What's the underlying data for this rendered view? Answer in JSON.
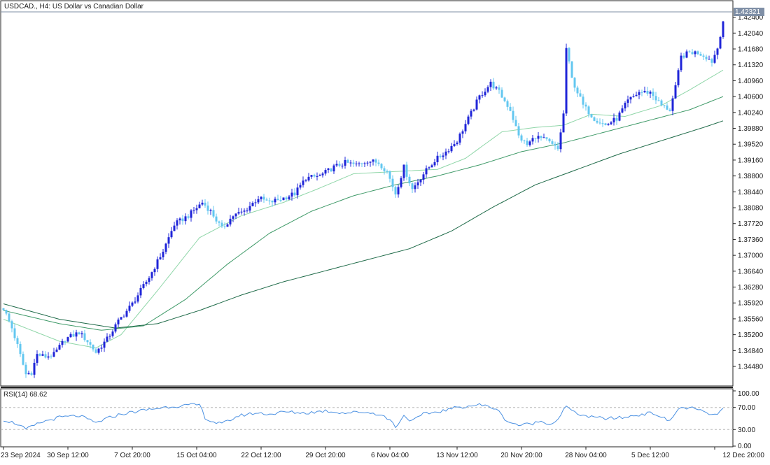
{
  "header": {
    "symbol_label": "USDCAD., H4:  US Dollar vs Canadian Dollar",
    "current_price": "1.42321"
  },
  "rsi_panel": {
    "label": "RSI(14) 68.62"
  },
  "colors": {
    "background": "#ffffff",
    "frame": "#222222",
    "bull_candle": "#1f25d8",
    "bear_candle": "#63c7f0",
    "ma_fast": "#8fd6a8",
    "ma_mid": "#3f9a68",
    "ma_slow": "#1e6a48",
    "rsi_line": "#4a90e2",
    "rsi_level": "#b8b8b8",
    "price_label_bg": "#7f8fa6"
  },
  "chart_data": [
    {
      "type": "candlestick",
      "title": "USDCAD., H4:  US Dollar vs Canadian Dollar",
      "price_ticks": [
        "1.42400",
        "1.42040",
        "1.41680",
        "1.41320",
        "1.40960",
        "1.40600",
        "1.40240",
        "1.39880",
        "1.39520",
        "1.39160",
        "1.38800",
        "1.38440",
        "1.38080",
        "1.37720",
        "1.37360",
        "1.37000",
        "1.36640",
        "1.36280",
        "1.35920",
        "1.35560",
        "1.35200",
        "1.34840",
        "1.34480"
      ],
      "ylim": [
        1.341,
        1.426
      ],
      "time_ticks": [
        "23 Sep 2024",
        "30 Sep 12:00",
        "7 Oct 20:00",
        "15 Oct 04:00",
        "22 Oct 12:00",
        "29 Oct 20:00",
        "6 Nov 04:00",
        "13 Nov 12:00",
        "20 Nov 20:00",
        "28 Nov 04:00",
        "5 Dec 12:00",
        "12 Dec 20:00"
      ],
      "price_keypoints": [
        [
          0,
          1.358
        ],
        [
          3,
          1.3535
        ],
        [
          5,
          1.3495
        ],
        [
          8,
          1.343
        ],
        [
          10,
          1.3435
        ],
        [
          12,
          1.3475
        ],
        [
          15,
          1.347
        ],
        [
          18,
          1.3475
        ],
        [
          22,
          1.351
        ],
        [
          27,
          1.3525
        ],
        [
          30,
          1.3505
        ],
        [
          33,
          1.348
        ],
        [
          37,
          1.351
        ],
        [
          41,
          1.355
        ],
        [
          46,
          1.359
        ],
        [
          52,
          1.365
        ],
        [
          57,
          1.371
        ],
        [
          61,
          1.377
        ],
        [
          66,
          1.379
        ],
        [
          71,
          1.382
        ],
        [
          74,
          1.38
        ],
        [
          78,
          1.376
        ],
        [
          82,
          1.379
        ],
        [
          86,
          1.38
        ],
        [
          91,
          1.383
        ],
        [
          95,
          1.382
        ],
        [
          100,
          1.383
        ],
        [
          104,
          1.384
        ],
        [
          108,
          1.3875
        ],
        [
          113,
          1.388
        ],
        [
          118,
          1.39
        ],
        [
          122,
          1.391
        ],
        [
          126,
          1.3905
        ],
        [
          130,
          1.3915
        ],
        [
          134,
          1.391
        ],
        [
          137,
          1.389
        ],
        [
          140,
          1.384
        ],
        [
          143,
          1.39
        ],
        [
          146,
          1.385
        ],
        [
          150,
          1.3885
        ],
        [
          154,
          1.3915
        ],
        [
          158,
          1.3935
        ],
        [
          162,
          1.396
        ],
        [
          166,
          1.401
        ],
        [
          170,
          1.406
        ],
        [
          174,
          1.409
        ],
        [
          177,
          1.407
        ],
        [
          181,
          1.403
        ],
        [
          184,
          1.397
        ],
        [
          187,
          1.395
        ],
        [
          190,
          1.397
        ],
        [
          194,
          1.396
        ],
        [
          198,
          1.394
        ],
        [
          200,
          1.402
        ],
        [
          201,
          1.417
        ],
        [
          203,
          1.41
        ],
        [
          207,
          1.404
        ],
        [
          211,
          1.401
        ],
        [
          215,
          1.3995
        ],
        [
          219,
          1.401
        ],
        [
          223,
          1.405
        ],
        [
          227,
          1.407
        ],
        [
          231,
          1.407
        ],
        [
          235,
          1.404
        ],
        [
          238,
          1.403
        ],
        [
          240,
          1.408
        ],
        [
          242,
          1.415
        ],
        [
          245,
          1.416
        ],
        [
          248,
          1.416
        ],
        [
          251,
          1.415
        ],
        [
          253,
          1.414
        ],
        [
          255,
          1.417
        ],
        [
          257,
          1.4232
        ]
      ],
      "ma_fast": [
        [
          0,
          1.3555
        ],
        [
          20,
          1.3505
        ],
        [
          33,
          1.349
        ],
        [
          42,
          1.352
        ],
        [
          55,
          1.362
        ],
        [
          70,
          1.374
        ],
        [
          85,
          1.379
        ],
        [
          100,
          1.382
        ],
        [
          112,
          1.385
        ],
        [
          125,
          1.3885
        ],
        [
          140,
          1.389
        ],
        [
          155,
          1.3895
        ],
        [
          165,
          1.392
        ],
        [
          178,
          1.398
        ],
        [
          190,
          1.399
        ],
        [
          200,
          1.3995
        ],
        [
          210,
          1.402
        ],
        [
          222,
          1.4015
        ],
        [
          235,
          1.404
        ],
        [
          245,
          1.4075
        ],
        [
          257,
          1.412
        ]
      ],
      "ma_mid": [
        [
          0,
          1.3575
        ],
        [
          20,
          1.3545
        ],
        [
          35,
          1.353
        ],
        [
          50,
          1.354
        ],
        [
          65,
          1.36
        ],
        [
          80,
          1.368
        ],
        [
          95,
          1.375
        ],
        [
          110,
          1.38
        ],
        [
          125,
          1.3835
        ],
        [
          140,
          1.386
        ],
        [
          155,
          1.388
        ],
        [
          170,
          1.3905
        ],
        [
          185,
          1.3935
        ],
        [
          200,
          1.3955
        ],
        [
          215,
          1.398
        ],
        [
          230,
          1.4005
        ],
        [
          245,
          1.403
        ],
        [
          257,
          1.406
        ]
      ],
      "ma_slow": [
        [
          0,
          1.359
        ],
        [
          20,
          1.3555
        ],
        [
          40,
          1.3535
        ],
        [
          55,
          1.3545
        ],
        [
          70,
          1.3575
        ],
        [
          85,
          1.361
        ],
        [
          100,
          1.364
        ],
        [
          115,
          1.3665
        ],
        [
          130,
          1.369
        ],
        [
          145,
          1.3715
        ],
        [
          160,
          1.3755
        ],
        [
          175,
          1.381
        ],
        [
          190,
          1.386
        ],
        [
          205,
          1.3895
        ],
        [
          220,
          1.393
        ],
        [
          235,
          1.396
        ],
        [
          250,
          1.399
        ],
        [
          257,
          1.4005
        ]
      ]
    },
    {
      "type": "line",
      "title": "RSI(14) 68.62",
      "ylim": [
        0,
        100
      ],
      "levels": [
        30,
        70
      ],
      "y_ticks": [
        "100.00",
        "70.00",
        "30.00",
        "0.00"
      ],
      "last_value": 68.62,
      "rsi_keypoints": [
        [
          0,
          48
        ],
        [
          5,
          40
        ],
        [
          8,
          30
        ],
        [
          10,
          35
        ],
        [
          14,
          44
        ],
        [
          20,
          52
        ],
        [
          27,
          55
        ],
        [
          33,
          42
        ],
        [
          37,
          50
        ],
        [
          42,
          58
        ],
        [
          50,
          65
        ],
        [
          60,
          72
        ],
        [
          70,
          75
        ],
        [
          72,
          52
        ],
        [
          74,
          45
        ],
        [
          78,
          40
        ],
        [
          84,
          55
        ],
        [
          90,
          60
        ],
        [
          96,
          58
        ],
        [
          100,
          62
        ],
        [
          108,
          60
        ],
        [
          115,
          64
        ],
        [
          122,
          60
        ],
        [
          128,
          62
        ],
        [
          134,
          58
        ],
        [
          138,
          48
        ],
        [
          140,
          35
        ],
        [
          143,
          55
        ],
        [
          146,
          45
        ],
        [
          150,
          58
        ],
        [
          156,
          63
        ],
        [
          162,
          70
        ],
        [
          170,
          75
        ],
        [
          176,
          68
        ],
        [
          178,
          55
        ],
        [
          180,
          45
        ],
        [
          184,
          38
        ],
        [
          188,
          40
        ],
        [
          192,
          45
        ],
        [
          196,
          40
        ],
        [
          198,
          50
        ],
        [
          201,
          72
        ],
        [
          204,
          60
        ],
        [
          210,
          52
        ],
        [
          216,
          50
        ],
        [
          222,
          52
        ],
        [
          228,
          58
        ],
        [
          232,
          60
        ],
        [
          236,
          50
        ],
        [
          238,
          45
        ],
        [
          241,
          68
        ],
        [
          245,
          70
        ],
        [
          250,
          62
        ],
        [
          254,
          55
        ],
        [
          257,
          68.62
        ]
      ]
    }
  ]
}
